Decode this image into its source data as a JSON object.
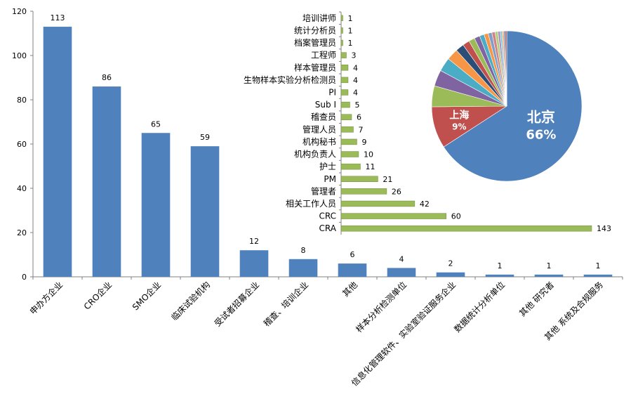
{
  "chart_data": [
    {
      "type": "bar",
      "categories": [
        "申办方企业",
        "CRO企业",
        "SMO企业",
        "临床试验机构",
        "受试者招募企业",
        "稽查、培训企业",
        "其他",
        "样本分析检测单位",
        "信息化管理软件、实验室验证服务企业",
        "数据统计分析单位",
        "其他 研究者",
        "其他 系统及合规服务"
      ],
      "values": [
        113,
        86,
        65,
        59,
        12,
        8,
        6,
        4,
        2,
        1,
        1,
        1
      ],
      "ylim": [
        0,
        120
      ],
      "yticks": [
        0,
        20,
        40,
        60,
        80,
        100,
        120
      ],
      "grid": false,
      "colors": {
        "bar": "#4f81bd",
        "axis": "#808080"
      }
    },
    {
      "type": "bar",
      "orientation": "horizontal",
      "categories": [
        "培训讲师",
        "统计分析员",
        "档案管理员",
        "工程师",
        "样本管理员",
        "生物样本实验分析检测员",
        "PI",
        "Sub I",
        "稽查员",
        "管理人员",
        "机构秘书",
        "机构负责人",
        "护士",
        "PM",
        "管理者",
        "相关工作人员",
        "CRC",
        "CRA"
      ],
      "values": [
        1,
        1,
        1,
        3,
        4,
        4,
        4,
        5,
        6,
        7,
        9,
        10,
        11,
        21,
        26,
        42,
        60,
        143
      ],
      "colors": {
        "bar": "#9bbb59",
        "bar_edge": "#71893f"
      }
    },
    {
      "type": "pie",
      "slices": [
        {
          "label": "北京",
          "value": 66,
          "color": "#4f81bd"
        },
        {
          "label": "上海",
          "value": 9,
          "color": "#c0504d"
        },
        {
          "label": "",
          "value": 4.5,
          "color": "#9bbb59"
        },
        {
          "label": "",
          "value": 3.5,
          "color": "#8064a2"
        },
        {
          "label": "",
          "value": 3,
          "color": "#4bacc6"
        },
        {
          "label": "",
          "value": 2.5,
          "color": "#f79646"
        },
        {
          "label": "",
          "value": 1.8,
          "color": "#2c4d75"
        },
        {
          "label": "",
          "value": 1.5,
          "color": "#c0504d"
        },
        {
          "label": "",
          "value": 1.3,
          "color": "#9bbb59"
        },
        {
          "label": "",
          "value": 1.2,
          "color": "#8064a2"
        },
        {
          "label": "",
          "value": 1.0,
          "color": "#4bacc6"
        },
        {
          "label": "",
          "value": 0.9,
          "color": "#f79646"
        },
        {
          "label": "",
          "value": 0.8,
          "color": "#7f9fc8"
        },
        {
          "label": "",
          "value": 0.7,
          "color": "#d28483"
        },
        {
          "label": "",
          "value": 0.6,
          "color": "#b4cc82"
        },
        {
          "label": "",
          "value": 0.5,
          "color": "#a593bc"
        },
        {
          "label": "",
          "value": 0.4,
          "color": "#7ec4d6"
        },
        {
          "label": "",
          "value": 0.4,
          "color": "#f9b07c"
        },
        {
          "label": "",
          "value": 0.3,
          "color": "#4a6fa0"
        },
        {
          "label": "",
          "value": 0.3,
          "color": "#a04442"
        }
      ],
      "labels_shown": [
        {
          "name": "北京",
          "pct": "66%"
        },
        {
          "name": "上海",
          "pct": "9%"
        }
      ]
    }
  ]
}
